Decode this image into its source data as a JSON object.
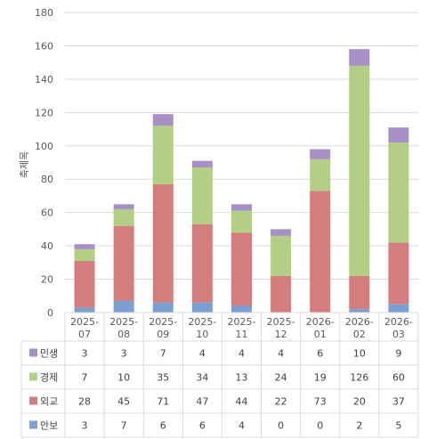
{
  "chart_data": {
    "type": "bar",
    "stacked": true,
    "ylabel": "축제목",
    "ylim": [
      0,
      180
    ],
    "yticks": [
      0,
      20,
      40,
      60,
      80,
      100,
      120,
      140,
      160,
      180
    ],
    "grid": true,
    "legend": "data-table",
    "categories": [
      [
        "2025-",
        "07"
      ],
      [
        "2025-",
        "08"
      ],
      [
        "2025-",
        "09"
      ],
      [
        "2025-",
        "10"
      ],
      [
        "2025-",
        "11"
      ],
      [
        "2025-",
        "12"
      ],
      [
        "2026-",
        "01"
      ],
      [
        "2026-",
        "02"
      ],
      [
        "2026-",
        "03"
      ]
    ],
    "series": [
      {
        "name": "안보",
        "color": "#7a9fd1",
        "values": [
          3,
          7,
          6,
          6,
          4,
          0,
          0,
          2,
          5
        ]
      },
      {
        "name": "외교",
        "color": "#d37e7e",
        "values": [
          28,
          45,
          71,
          47,
          44,
          22,
          73,
          20,
          37
        ]
      },
      {
        "name": "경제",
        "color": "#b3cf86",
        "values": [
          7,
          10,
          35,
          34,
          13,
          24,
          19,
          126,
          60
        ]
      },
      {
        "name": "민생",
        "color": "#a790c3",
        "values": [
          3,
          3,
          7,
          4,
          4,
          4,
          6,
          10,
          9
        ]
      }
    ],
    "table_order": [
      "민생",
      "경제",
      "외교",
      "안보"
    ]
  }
}
